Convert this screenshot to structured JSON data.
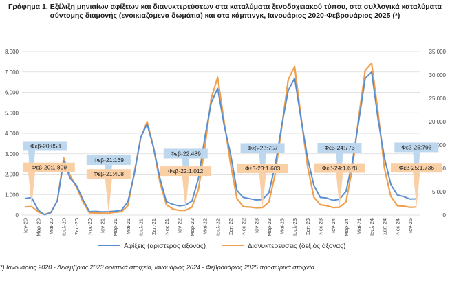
{
  "title_line1": "Γράφημα 1. Εξέλιξη μηνιαίων αφίξεων και διανυκτερεύσεων στα καταλύματα ξενοδοχειακού τύπου, στα συλλογικά καταλύματα",
  "title_line2": "σύντομης διαμονής (ενοικιαζόμενα δωμάτια) και στα κάμπινγκ, Ιανουάριος 2020-Φεβρουάριος 2025 (*)",
  "footnote": "*) Ιανουάριος 2020 - Δεκέμβριος 2023 οριστικά στοιχεία, Ιανουάριος 2024 - Φεβρουάριος 2025 προσωρινά στοιχεία.",
  "colors": {
    "arrivals": "#5b8fd0",
    "overnights": "#f0a04b",
    "arrivals_callout": "#bdd7ee",
    "overnights_callout": "#f9cfa6",
    "grid": "#d9d9d9"
  },
  "chart_data": {
    "type": "line",
    "x_tick_labels": [
      "Ιαν-20",
      "Μαρ-20",
      "Μαϊ-20",
      "Ιουλ-20",
      "Σεπ-20",
      "Νοε-20",
      "Ιαν-21",
      "Μαρ-21",
      "Μαϊ-21",
      "Ιουλ-21",
      "Σεπ-21",
      "Νοε-21",
      "Ιαν-22",
      "Μαρ-22",
      "Μαϊ-22",
      "Ιουλ-22",
      "Σεπ-22",
      "Νοε-22",
      "Ιαν-23",
      "Μαρ-23",
      "Μαϊ-23",
      "Ιουλ-23",
      "Σεπ-23",
      "Νοε-23",
      "Ιαν-24",
      "Μαρ-24",
      "Μαϊ-24",
      "Ιουλ-24",
      "Σεπ-24",
      "Νοε-24",
      "Ιαν-25"
    ],
    "y_left": {
      "min": 0,
      "max": 8000,
      "ticks": [
        "0",
        "1.000",
        "2.000",
        "3.000",
        "4.000",
        "5.000",
        "6.000",
        "7.000",
        "8.000"
      ]
    },
    "y_right": {
      "min": 0,
      "max": 35000,
      "ticks": [
        "0",
        "5.000",
        "10.000",
        "15.000",
        "20.000",
        "25.000",
        "30.000",
        "35.000"
      ]
    },
    "series": [
      {
        "name": "Αφίξεις (αριστερός άξονας)",
        "axis": "left",
        "x": [
          "Ιαν-20",
          "Φεβ-20",
          "Μαρ-20",
          "Απρ-20",
          "Μαϊ-20",
          "Ιουν-20",
          "Ιουλ-20",
          "Αυγ-20",
          "Σεπ-20",
          "Οκτ-20",
          "Νοε-20",
          "Δεκ-20",
          "Ιαν-21",
          "Φεβ-21",
          "Μαρ-21",
          "Απρ-21",
          "Μαϊ-21",
          "Ιουν-21",
          "Ιουλ-21",
          "Αυγ-21",
          "Σεπ-21",
          "Οκτ-21",
          "Νοε-21",
          "Δεκ-21",
          "Ιαν-22",
          "Φεβ-22",
          "Μαρ-22",
          "Απρ-22",
          "Μαϊ-22",
          "Ιουν-22",
          "Ιουλ-22",
          "Αυγ-22",
          "Σεπ-22",
          "Οκτ-22",
          "Νοε-22",
          "Δεκ-22",
          "Ιαν-23",
          "Φεβ-23",
          "Μαρ-23",
          "Απρ-23",
          "Μαϊ-23",
          "Ιουν-23",
          "Ιουλ-23",
          "Αυγ-23",
          "Σεπ-23",
          "Οκτ-23",
          "Νοε-23",
          "Δεκ-23",
          "Ιαν-24",
          "Φεβ-24",
          "Μαρ-24",
          "Απρ-24",
          "Μαϊ-24",
          "Ιουν-24",
          "Ιουλ-24",
          "Αυγ-24",
          "Σεπ-24",
          "Οκτ-24",
          "Νοε-24",
          "Δεκ-24",
          "Ιαν-25",
          "Φεβ-25"
        ],
        "values": [
          810,
          858,
          250,
          20,
          120,
          700,
          2650,
          1800,
          1450,
          750,
          170,
          180,
          160,
          169,
          190,
          240,
          650,
          2000,
          3800,
          4450,
          3300,
          1800,
          650,
          520,
          450,
          489,
          680,
          1800,
          3800,
          5500,
          6200,
          4400,
          3000,
          1200,
          860,
          800,
          740,
          757,
          1100,
          2500,
          4400,
          6100,
          6700,
          4700,
          2800,
          1450,
          860,
          830,
          720,
          773,
          1150,
          2600,
          4600,
          6700,
          7000,
          4700,
          2800,
          1500,
          980,
          900,
          780,
          793
        ]
      },
      {
        "name": "Διανυκτερεύσεις (δεξιός άξονας)",
        "axis": "right",
        "x": [
          "Ιαν-20",
          "Φεβ-20",
          "Μαρ-20",
          "Απρ-20",
          "Μαϊ-20",
          "Ιουν-20",
          "Ιουλ-20",
          "Αυγ-20",
          "Σεπ-20",
          "Οκτ-20",
          "Νοε-20",
          "Δεκ-20",
          "Ιαν-21",
          "Φεβ-21",
          "Μαρ-21",
          "Απρ-21",
          "Μαϊ-21",
          "Ιουν-21",
          "Ιουλ-21",
          "Αυγ-21",
          "Σεπ-21",
          "Οκτ-21",
          "Νοε-21",
          "Δεκ-21",
          "Ιαν-22",
          "Φεβ-22",
          "Μαρ-22",
          "Απρ-22",
          "Μαϊ-22",
          "Ιουν-22",
          "Ιουλ-22",
          "Αυγ-22",
          "Σεπ-22",
          "Οκτ-22",
          "Νοε-22",
          "Δεκ-22",
          "Ιαν-23",
          "Φεβ-23",
          "Μαρ-23",
          "Απρ-23",
          "Μαϊ-23",
          "Ιουν-23",
          "Ιουλ-23",
          "Αυγ-23",
          "Σεπ-23",
          "Οκτ-23",
          "Νοε-23",
          "Δεκ-23",
          "Ιαν-24",
          "Φεβ-24",
          "Μαρ-24",
          "Απρ-24",
          "Μαϊ-24",
          "Ιουν-24",
          "Ιουλ-24",
          "Αυγ-24",
          "Σεπ-24",
          "Οκτ-24",
          "Νοε-24",
          "Δεκ-24",
          "Ιαν-25",
          "Φεβ-25"
        ],
        "values": [
          1750,
          1809,
          700,
          150,
          600,
          3000,
          12200,
          8500,
          6000,
          2800,
          500,
          450,
          400,
          408,
          600,
          700,
          2000,
          9000,
          16500,
          20000,
          14500,
          7000,
          2200,
          1300,
          1000,
          1012,
          1700,
          5500,
          14500,
          25000,
          29500,
          20000,
          11000,
          3500,
          1800,
          1700,
          1550,
          1603,
          2800,
          9000,
          19000,
          29000,
          31800,
          21000,
          10500,
          3800,
          2200,
          2000,
          1600,
          1678,
          2800,
          10000,
          21000,
          31000,
          32500,
          22000,
          10000,
          4000,
          2000,
          1900,
          1650,
          1736
        ]
      }
    ],
    "annotations": {
      "arrivals": [
        {
          "x": "Φεβ-20",
          "text": "Φεβ-20:858"
        },
        {
          "x": "Φεβ-21",
          "text": "Φεβ-21:169"
        },
        {
          "x": "Φεβ-22",
          "text": "Φεβ-22:489"
        },
        {
          "x": "Φεβ-23",
          "text": "Φεβ-23:757"
        },
        {
          "x": "Φεβ-24",
          "text": "Φεβ-24:773"
        },
        {
          "x": "Φεβ-25",
          "text": "Φεβ-25:793"
        }
      ],
      "overnights": [
        {
          "x": "Φεβ-20",
          "text": "Φεβ-20:1.809"
        },
        {
          "x": "Φεβ-21",
          "text": "Φεβ-21:408"
        },
        {
          "x": "Φεβ-22",
          "text": "Φεβ-22:1.012"
        },
        {
          "x": "Φεβ-23",
          "text": "Φεβ-23:1.603"
        },
        {
          "x": "Φεβ-24",
          "text": "Φεβ-24:1.678"
        },
        {
          "x": "Φεβ-25",
          "text": "Φεβ-25:1.736"
        }
      ]
    },
    "grid": true,
    "legend_position": "bottom"
  }
}
